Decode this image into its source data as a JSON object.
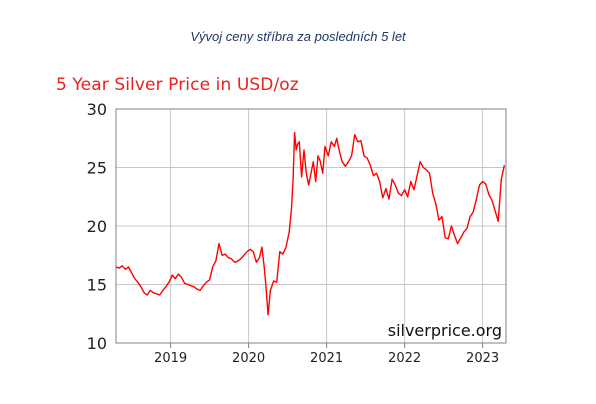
{
  "caption": "Vývoj ceny stříbra za posledních 5 let",
  "chart_data": {
    "type": "line",
    "title": "5 Year Silver Price in USD/oz",
    "xlabel": "",
    "ylabel": "",
    "ylim": [
      10,
      30
    ],
    "xlim": [
      2018.3,
      2023.3
    ],
    "yticks": [
      "10",
      "15",
      "20",
      "25",
      "30"
    ],
    "xticks": [
      {
        "value": 2019.0,
        "label": "2019"
      },
      {
        "value": 2020.0,
        "label": "2020"
      },
      {
        "value": 2021.0,
        "label": "2021"
      },
      {
        "value": 2022.0,
        "label": "2022"
      },
      {
        "value": 2023.0,
        "label": "2023"
      }
    ],
    "grid": true,
    "watermark": "silverprice.org",
    "series_color": "#ff0000",
    "series": [
      {
        "x": [
          2018.3,
          2018.34,
          2018.38,
          2018.42,
          2018.46,
          2018.5,
          2018.54,
          2018.58,
          2018.62,
          2018.66,
          2018.7,
          2018.74,
          2018.78,
          2018.82,
          2018.86,
          2018.9,
          2018.94,
          2018.98,
          2019.02,
          2019.06,
          2019.1,
          2019.14,
          2019.18,
          2019.22,
          2019.26,
          2019.3,
          2019.34,
          2019.38,
          2019.42,
          2019.46,
          2019.5,
          2019.54,
          2019.58,
          2019.62,
          2019.66,
          2019.7,
          2019.74,
          2019.78,
          2019.82,
          2019.86,
          2019.9,
          2019.94,
          2019.98,
          2020.02,
          2020.06,
          2020.1,
          2020.14,
          2020.17,
          2020.2,
          2020.22,
          2020.25,
          2020.28,
          2020.32,
          2020.36,
          2020.4,
          2020.44,
          2020.48,
          2020.52,
          2020.55,
          2020.57,
          2020.59,
          2020.61,
          2020.63,
          2020.65,
          2020.68,
          2020.71,
          2020.74,
          2020.77,
          2020.8,
          2020.83,
          2020.86,
          2020.89,
          2020.92,
          2020.95,
          2020.98,
          2021.02,
          2021.06,
          2021.1,
          2021.13,
          2021.16,
          2021.2,
          2021.24,
          2021.28,
          2021.32,
          2021.36,
          2021.4,
          2021.44,
          2021.48,
          2021.52,
          2021.56,
          2021.6,
          2021.64,
          2021.68,
          2021.72,
          2021.76,
          2021.8,
          2021.84,
          2021.88,
          2021.92,
          2021.96,
          2022.0,
          2022.04,
          2022.08,
          2022.12,
          2022.16,
          2022.2,
          2022.24,
          2022.28,
          2022.32,
          2022.36,
          2022.4,
          2022.44,
          2022.48,
          2022.52,
          2022.56,
          2022.6,
          2022.64,
          2022.68,
          2022.72,
          2022.76,
          2022.8,
          2022.84,
          2022.88,
          2022.92,
          2022.96,
          2023.0,
          2023.04,
          2023.08,
          2023.12,
          2023.16,
          2023.2,
          2023.24,
          2023.28
        ],
        "y": [
          16.5,
          16.4,
          16.6,
          16.3,
          16.5,
          16.0,
          15.5,
          15.2,
          14.8,
          14.3,
          14.1,
          14.5,
          14.3,
          14.2,
          14.1,
          14.5,
          14.8,
          15.2,
          15.8,
          15.5,
          15.9,
          15.6,
          15.1,
          15.0,
          14.9,
          14.8,
          14.6,
          14.5,
          14.9,
          15.2,
          15.4,
          16.5,
          17.0,
          18.5,
          17.5,
          17.6,
          17.3,
          17.2,
          16.9,
          17.0,
          17.2,
          17.5,
          17.8,
          18.0,
          17.8,
          16.9,
          17.3,
          18.2,
          16.5,
          15.0,
          12.4,
          14.5,
          15.3,
          15.2,
          17.8,
          17.6,
          18.2,
          19.5,
          21.5,
          24.0,
          28.0,
          26.5,
          27.0,
          27.2,
          24.2,
          26.5,
          24.5,
          23.5,
          24.5,
          25.5,
          23.8,
          26.0,
          25.5,
          24.5,
          26.8,
          26.0,
          27.2,
          26.8,
          27.5,
          26.5,
          25.5,
          25.1,
          25.5,
          26.0,
          27.8,
          27.2,
          27.3,
          26.0,
          25.8,
          25.2,
          24.3,
          24.5,
          23.8,
          22.4,
          23.2,
          22.3,
          24.0,
          23.5,
          22.8,
          22.6,
          23.1,
          22.5,
          23.8,
          23.1,
          24.3,
          25.5,
          25.0,
          24.8,
          24.5,
          22.8,
          21.9,
          20.5,
          20.8,
          19.0,
          18.9,
          20.0,
          19.2,
          18.5,
          19.0,
          19.5,
          19.8,
          20.8,
          21.2,
          22.3,
          23.5,
          23.8,
          23.6,
          22.7,
          22.2,
          21.3,
          20.4,
          24.0,
          25.2
        ]
      }
    ]
  }
}
